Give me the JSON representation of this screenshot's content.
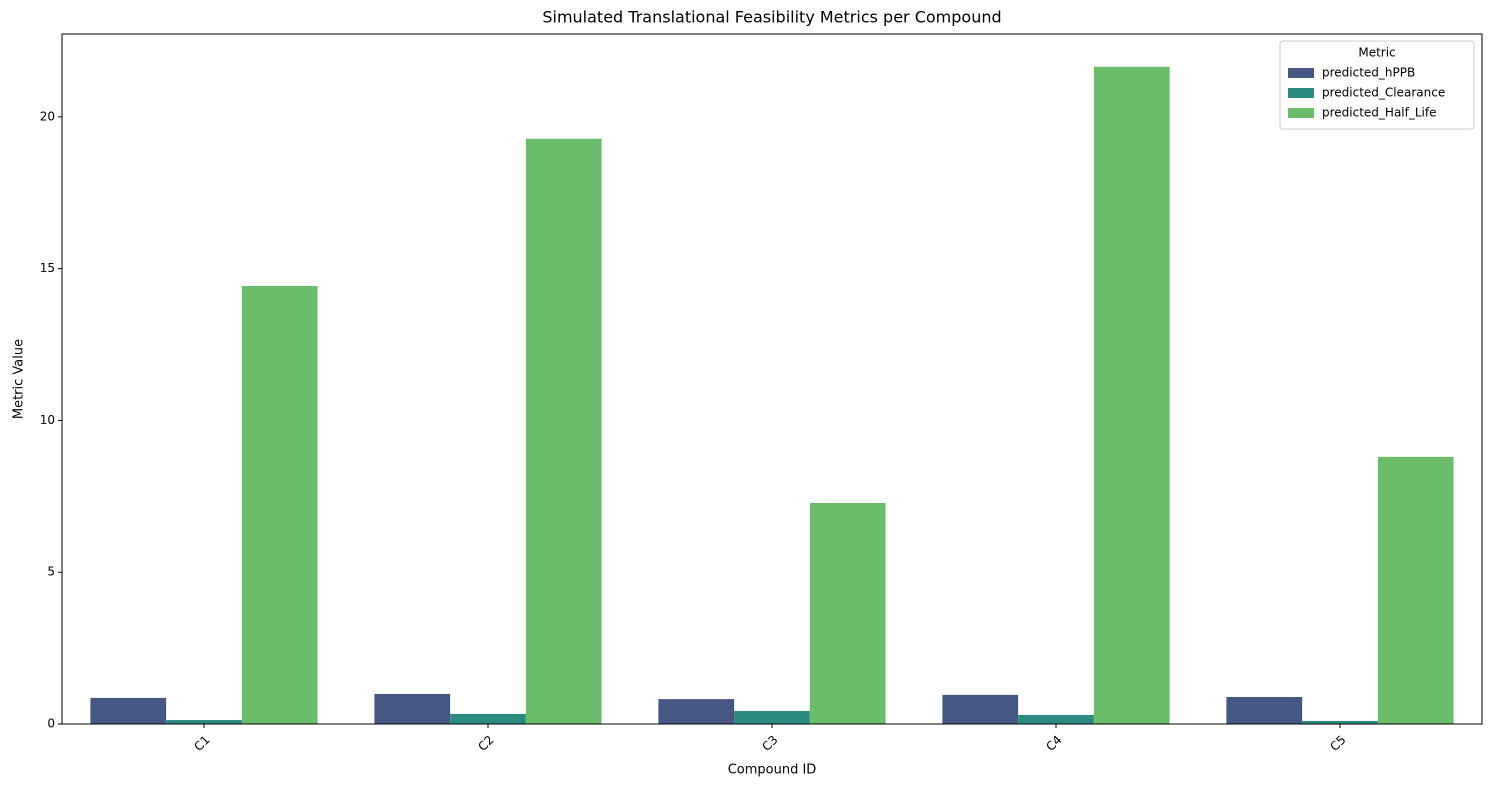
{
  "chart_data": {
    "type": "bar",
    "title": "Simulated Translational Feasibility Metrics per Compound",
    "xlabel": "Compound ID",
    "ylabel": "Metric Value",
    "categories": [
      "C1",
      "C2",
      "C3",
      "C4",
      "C5"
    ],
    "series": [
      {
        "name": "predicted_hPPB",
        "color": "#465783",
        "values": [
          0.86,
          0.99,
          0.82,
          0.96,
          0.89
        ]
      },
      {
        "name": "predicted_Clearance",
        "color": "#2b8b80",
        "values": [
          0.13,
          0.33,
          0.43,
          0.3,
          0.1
        ]
      },
      {
        "name": "predicted_Half_Life",
        "color": "#6bbd6c",
        "values": [
          14.43,
          19.28,
          7.28,
          21.65,
          8.8
        ]
      }
    ],
    "legend_title": "Metric",
    "legend_position": "upper right",
    "ylim": [
      0,
      22.73
    ],
    "yticks": [
      0,
      5,
      10,
      15,
      20
    ],
    "grid": false
  }
}
